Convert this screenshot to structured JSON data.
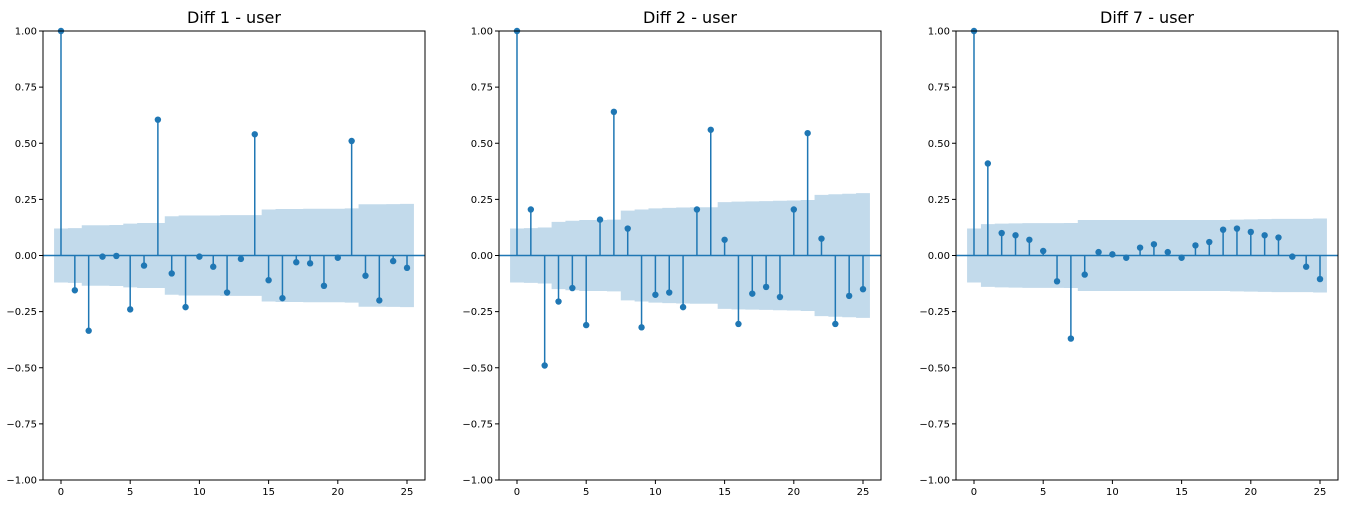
{
  "chart_data": [
    {
      "type": "stem",
      "title": "Diff 1 - user",
      "xlim": [
        -1.3,
        26.3
      ],
      "ylim": [
        -1.0,
        1.0
      ],
      "xticks": [
        0,
        5,
        10,
        15,
        20,
        25
      ],
      "yticks": [
        -1.0,
        -0.75,
        -0.5,
        -0.25,
        0.0,
        0.25,
        0.5,
        0.75,
        1.0
      ],
      "ytick_labels": [
        "−1.00",
        "−0.75",
        "−0.50",
        "−0.25",
        "0.00",
        "0.25",
        "0.50",
        "0.75",
        "1.00"
      ],
      "x": [
        0,
        1,
        2,
        3,
        4,
        5,
        6,
        7,
        8,
        9,
        10,
        11,
        12,
        13,
        14,
        15,
        16,
        17,
        18,
        19,
        20,
        21,
        22,
        23,
        24,
        25
      ],
      "values": [
        1.0,
        -0.155,
        -0.335,
        -0.005,
        -0.002,
        -0.24,
        -0.045,
        0.605,
        -0.08,
        -0.23,
        -0.005,
        -0.05,
        -0.165,
        -0.015,
        0.54,
        -0.11,
        -0.19,
        -0.03,
        -0.035,
        -0.135,
        -0.01,
        0.51,
        -0.09,
        -0.2,
        -0.025,
        -0.055
      ],
      "conf_band": [
        0.12,
        0.122,
        0.135,
        0.135,
        0.136,
        0.142,
        0.145,
        0.145,
        0.175,
        0.178,
        0.178,
        0.178,
        0.18,
        0.18,
        0.18,
        0.205,
        0.207,
        0.207,
        0.208,
        0.208,
        0.208,
        0.21,
        0.228,
        0.228,
        0.229,
        0.23
      ],
      "colors": {
        "stem": "#1f77b4",
        "band": "#1f77b4",
        "axis": "#000000"
      }
    },
    {
      "type": "stem",
      "title": "Diff 2 - user",
      "xlim": [
        -1.3,
        26.3
      ],
      "ylim": [
        -1.0,
        1.0
      ],
      "xticks": [
        0,
        5,
        10,
        15,
        20,
        25
      ],
      "yticks": [
        -1.0,
        -0.75,
        -0.5,
        -0.25,
        0.0,
        0.25,
        0.5,
        0.75,
        1.0
      ],
      "ytick_labels": [
        "−1.00",
        "−0.75",
        "−0.50",
        "−0.25",
        "0.00",
        "0.25",
        "0.50",
        "0.75",
        "1.00"
      ],
      "x": [
        0,
        1,
        2,
        3,
        4,
        5,
        6,
        7,
        8,
        9,
        10,
        11,
        12,
        13,
        14,
        15,
        16,
        17,
        18,
        19,
        20,
        21,
        22,
        23,
        24,
        25
      ],
      "values": [
        1.0,
        0.205,
        -0.49,
        -0.205,
        -0.145,
        -0.31,
        0.16,
        0.64,
        0.12,
        -0.32,
        -0.175,
        -0.165,
        -0.23,
        0.205,
        0.56,
        0.07,
        -0.305,
        -0.17,
        -0.14,
        -0.185,
        0.205,
        0.545,
        0.075,
        -0.305,
        -0.18,
        -0.15
      ],
      "conf_band": [
        0.12,
        0.122,
        0.125,
        0.15,
        0.155,
        0.158,
        0.158,
        0.16,
        0.2,
        0.205,
        0.21,
        0.212,
        0.214,
        0.215,
        0.215,
        0.238,
        0.24,
        0.241,
        0.242,
        0.244,
        0.245,
        0.247,
        0.27,
        0.273,
        0.275,
        0.278
      ],
      "colors": {
        "stem": "#1f77b4",
        "band": "#1f77b4",
        "axis": "#000000"
      }
    },
    {
      "type": "stem",
      "title": "Diff 7 - user",
      "xlim": [
        -1.3,
        26.3
      ],
      "ylim": [
        -1.0,
        1.0
      ],
      "xticks": [
        0,
        5,
        10,
        15,
        20,
        25
      ],
      "yticks": [
        -1.0,
        -0.75,
        -0.5,
        -0.25,
        0.0,
        0.25,
        0.5,
        0.75,
        1.0
      ],
      "ytick_labels": [
        "−1.00",
        "−0.75",
        "−0.50",
        "−0.25",
        "0.00",
        "0.25",
        "0.50",
        "0.75",
        "1.00"
      ],
      "x": [
        0,
        1,
        2,
        3,
        4,
        5,
        6,
        7,
        8,
        9,
        10,
        11,
        12,
        13,
        14,
        15,
        16,
        17,
        18,
        19,
        20,
        21,
        22,
        23,
        24,
        25
      ],
      "values": [
        1.0,
        0.41,
        0.1,
        0.09,
        0.07,
        0.02,
        -0.115,
        -0.37,
        -0.085,
        0.015,
        0.005,
        -0.01,
        0.035,
        0.05,
        0.015,
        -0.01,
        0.045,
        0.06,
        0.115,
        0.12,
        0.105,
        0.09,
        0.08,
        -0.005,
        -0.05,
        -0.105
      ],
      "conf_band": [
        0.12,
        0.14,
        0.142,
        0.143,
        0.144,
        0.144,
        0.144,
        0.145,
        0.158,
        0.158,
        0.158,
        0.158,
        0.158,
        0.158,
        0.158,
        0.158,
        0.158,
        0.158,
        0.158,
        0.16,
        0.161,
        0.162,
        0.163,
        0.163,
        0.163,
        0.165
      ],
      "colors": {
        "stem": "#1f77b4",
        "band": "#1f77b4",
        "axis": "#000000"
      }
    }
  ]
}
